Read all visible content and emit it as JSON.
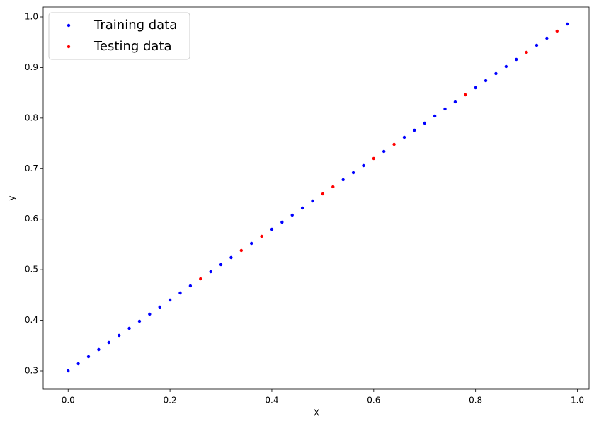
{
  "chart_data": {
    "type": "scatter",
    "x_label": "X",
    "y_label": "y",
    "xlim": [
      -0.049,
      1.0229
    ],
    "ylim": [
      0.2636,
      1.0196
    ],
    "xticks": [
      {
        "value": 0,
        "label": "0.0"
      },
      0.2,
      0.4,
      0.6,
      0.8,
      {
        "value": 1,
        "label": "1.0"
      }
    ],
    "yticks": [
      0.3,
      0.4,
      0.5,
      0.6,
      0.7,
      0.8,
      0.9,
      {
        "value": 1,
        "label": "1.0"
      }
    ],
    "legend": "upper left",
    "series": [
      {
        "name": "Training data",
        "color": "#0000ff",
        "x": [
          0,
          0.02,
          0.04,
          0.06,
          0.08,
          0.1,
          0.12,
          0.14,
          0.16,
          0.18,
          0.2,
          0.22,
          0.24,
          0.28,
          0.3,
          0.32,
          0.36,
          0.4,
          0.42,
          0.44,
          0.46,
          0.48,
          0.54,
          0.56,
          0.58,
          0.62,
          0.66,
          0.68,
          0.7,
          0.72,
          0.74,
          0.76,
          0.8,
          0.82,
          0.84,
          0.86,
          0.88,
          0.92,
          0.94,
          0.98
        ],
        "values": [
          0.3,
          0.314,
          0.328,
          0.342,
          0.356,
          0.37,
          0.384,
          0.398,
          0.412,
          0.426,
          0.44,
          0.454,
          0.468,
          0.496,
          0.51,
          0.524,
          0.552,
          0.58,
          0.594,
          0.608,
          0.622,
          0.636,
          0.678,
          0.692,
          0.706,
          0.734,
          0.762,
          0.776,
          0.79,
          0.804,
          0.818,
          0.832,
          0.86,
          0.874,
          0.888,
          0.902,
          0.916,
          0.944,
          0.958,
          0.986
        ]
      },
      {
        "name": "Testing data",
        "color": "#ff0000",
        "x": [
          0.26,
          0.34,
          0.38,
          0.5,
          0.52,
          0.6,
          0.64,
          0.78,
          0.9,
          0.96
        ],
        "values": [
          0.482,
          0.538,
          0.566,
          0.65,
          0.664,
          0.72,
          0.748,
          0.846,
          0.93,
          0.972
        ]
      }
    ]
  }
}
